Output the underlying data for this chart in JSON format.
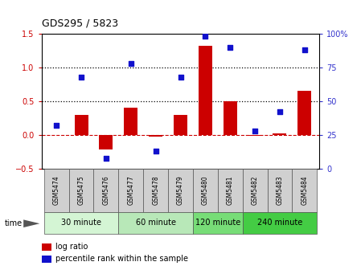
{
  "title": "GDS295 / 5823",
  "samples": [
    "GSM5474",
    "GSM5475",
    "GSM5476",
    "GSM5477",
    "GSM5478",
    "GSM5479",
    "GSM5480",
    "GSM5481",
    "GSM5482",
    "GSM5483",
    "GSM5484"
  ],
  "log_ratio": [
    0.0,
    0.3,
    -0.22,
    0.4,
    -0.02,
    0.3,
    1.32,
    0.5,
    -0.01,
    0.02,
    0.65
  ],
  "percentile": [
    32,
    68,
    8,
    78,
    13,
    68,
    98,
    90,
    28,
    42,
    88
  ],
  "ylim_left": [
    -0.5,
    1.5
  ],
  "ylim_right": [
    0,
    100
  ],
  "yticks_left": [
    -0.5,
    0.0,
    0.5,
    1.0,
    1.5
  ],
  "yticks_right": [
    0,
    25,
    50,
    75,
    100
  ],
  "hlines": [
    0.5,
    1.0
  ],
  "bar_color": "#cc0000",
  "dot_color": "#1111cc",
  "zero_line_color": "#cc0000",
  "hline_color": "black",
  "groups": [
    {
      "label": "30 minute",
      "start": 0,
      "end": 3,
      "color": "#d4f5d4"
    },
    {
      "label": "60 minute",
      "start": 3,
      "end": 6,
      "color": "#b8e8b8"
    },
    {
      "label": "120 minute",
      "start": 6,
      "end": 8,
      "color": "#77dd77"
    },
    {
      "label": "240 minute",
      "start": 8,
      "end": 11,
      "color": "#44cc44"
    }
  ],
  "xlabel_time": "time",
  "legend_log": "log ratio",
  "legend_pct": "percentile rank within the sample",
  "bg_color": "#ffffff",
  "tick_label_color_left": "#cc0000",
  "tick_label_color_right": "#3333cc",
  "bar_width": 0.55,
  "label_bg": "#d0d0d0"
}
